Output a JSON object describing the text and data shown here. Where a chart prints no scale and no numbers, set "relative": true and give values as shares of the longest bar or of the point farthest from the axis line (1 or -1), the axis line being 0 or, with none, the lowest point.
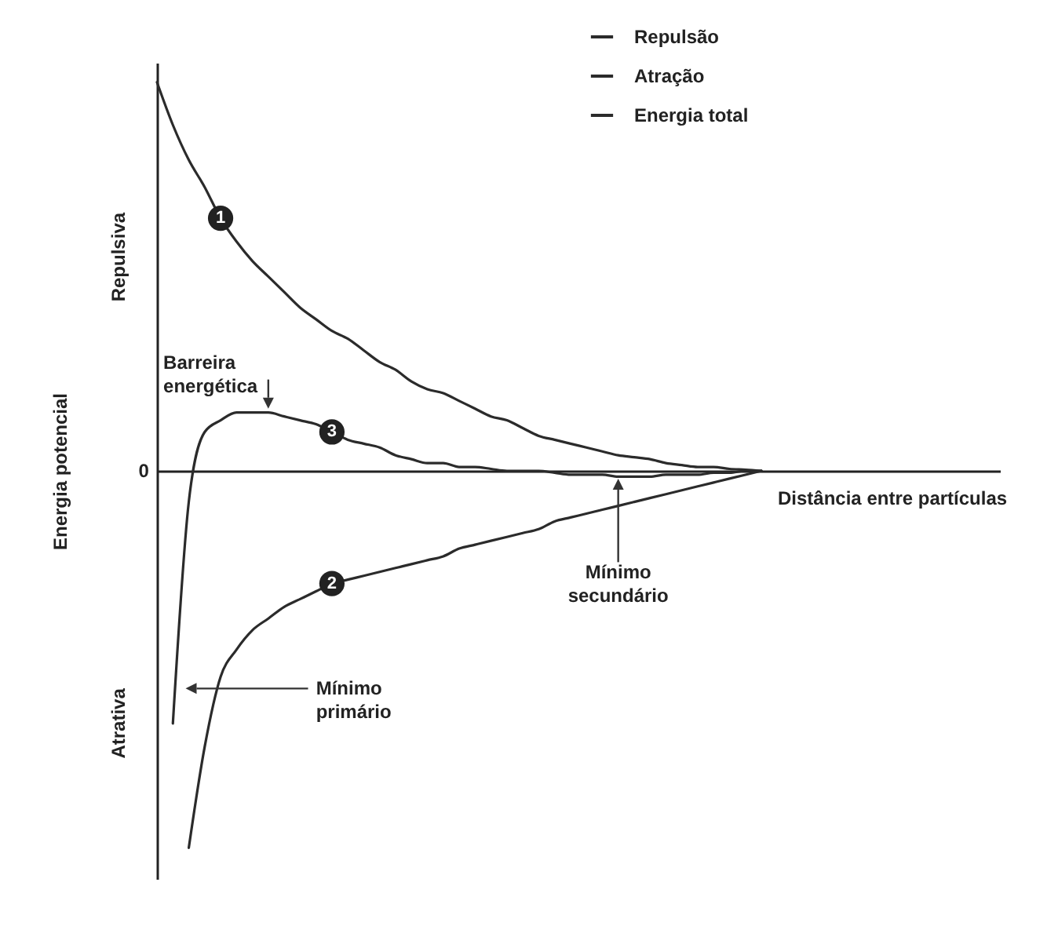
{
  "chart_data": {
    "type": "line",
    "relative": true,
    "xlabel": "Distância entre partículas",
    "ylabel": "Energia potencial",
    "legend": "top right",
    "line_style": "solid",
    "annotations": [
      "Repulsiva",
      "Atrativa",
      "0",
      "Barreira energética",
      "Mínimo primário",
      "Mínimo secundário",
      "1",
      "2",
      "3"
    ],
    "categories": [
      null,
      null,
      null,
      null,
      null,
      null,
      null,
      null,
      null,
      null,
      null,
      null,
      null,
      null,
      null,
      null,
      null,
      null,
      null,
      null,
      null,
      null,
      null,
      null,
      null,
      null,
      null,
      null,
      null,
      null,
      null,
      null,
      null,
      null,
      null,
      null,
      null,
      null,
      null,
      null,
      null,
      null,
      null,
      null,
      null,
      null,
      null,
      null,
      null,
      null,
      null,
      null,
      null,
      null
    ],
    "series": [
      {
        "name": "Repulsão",
        "color": "#2b2b2b",
        "values": [
          1.0,
          0.89,
          0.8,
          0.73,
          0.65,
          0.59,
          0.54,
          0.5,
          0.46,
          0.42,
          0.39,
          0.36,
          0.34,
          0.31,
          0.28,
          0.26,
          0.23,
          0.21,
          0.2,
          0.18,
          0.16,
          0.14,
          0.13,
          0.11,
          0.09,
          0.08,
          0.07,
          0.06,
          0.05,
          0.04,
          0.035,
          0.03,
          0.02,
          0.015,
          0.01,
          0.01,
          0.005,
          0.003,
          0,
          null,
          null,
          null,
          null,
          null,
          null,
          null,
          null,
          null,
          null,
          null,
          null,
          null,
          null,
          null
        ]
      },
      {
        "name": "Atração",
        "color": "#2b2b2b",
        "values": [
          null,
          null,
          -0.97,
          -0.71,
          -0.53,
          -0.46,
          -0.41,
          -0.38,
          -0.35,
          -0.33,
          -0.31,
          -0.29,
          -0.28,
          -0.27,
          -0.26,
          -0.25,
          -0.24,
          -0.23,
          -0.22,
          -0.2,
          -0.19,
          -0.18,
          -0.17,
          -0.16,
          -0.15,
          -0.13,
          -0.12,
          -0.11,
          -0.1,
          -0.09,
          -0.08,
          -0.07,
          -0.06,
          -0.05,
          -0.04,
          -0.03,
          -0.02,
          -0.01,
          0,
          null,
          null,
          null,
          null,
          null,
          null,
          null,
          null,
          null,
          null,
          null,
          null,
          null,
          null,
          null
        ]
      },
      {
        "name": "Energia total",
        "color": "#2b2b2b",
        "values": [
          null,
          -0.65,
          -0.08,
          0.1,
          0.13,
          0.15,
          0.15,
          0.15,
          0.14,
          0.13,
          0.12,
          0.1,
          0.08,
          0.07,
          0.06,
          0.04,
          0.03,
          0.02,
          0.02,
          0.01,
          0.01,
          0.005,
          0,
          0,
          0,
          -0.005,
          -0.01,
          -0.01,
          -0.01,
          -0.015,
          -0.015,
          -0.015,
          -0.01,
          -0.01,
          -0.01,
          -0.005,
          -0.005,
          0,
          0,
          null,
          null,
          null,
          null,
          null,
          null,
          null,
          null,
          null,
          null,
          null,
          null,
          null,
          null,
          null
        ]
      }
    ]
  }
}
